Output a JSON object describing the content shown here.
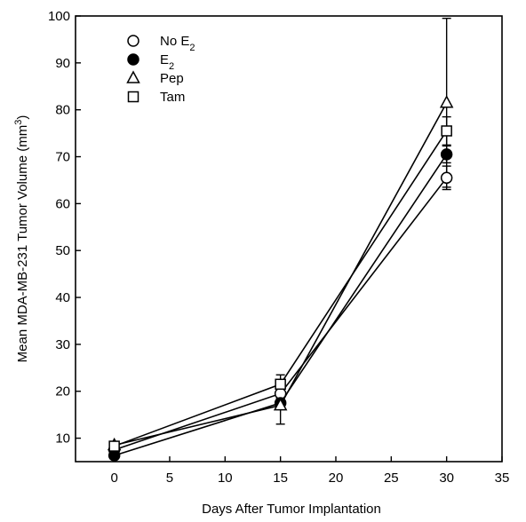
{
  "chart_data": {
    "type": "line",
    "xlabel": "Days After Tumor Implantation",
    "ylabel": "Mean MDA-MB-231 Tumor Volume (mm³)",
    "xlim": [
      -3.5,
      35
    ],
    "ylim": [
      5,
      100
    ],
    "xticks": [
      0,
      5,
      10,
      15,
      20,
      25,
      30,
      35
    ],
    "yticks": [
      10,
      20,
      30,
      40,
      50,
      60,
      70,
      80,
      90,
      100
    ],
    "x": [
      0,
      15,
      30
    ],
    "grid": false,
    "legend_position": "top-left",
    "series": [
      {
        "name": "No E₂",
        "marker": "circle-open",
        "values": [
          7.5,
          19.5,
          65.5
        ],
        "errors": [
          0.8,
          1.5,
          2.5
        ]
      },
      {
        "name": "E₂",
        "marker": "circle-filled",
        "values": [
          6.3,
          17.5,
          70.5
        ],
        "errors": [
          0.6,
          1.0,
          1.8
        ]
      },
      {
        "name": "Pep",
        "marker": "triangle-open",
        "values": [
          8.5,
          17.0,
          81.5
        ],
        "errors": [
          0.8,
          4.0,
          18.0
        ]
      },
      {
        "name": "Tam",
        "marker": "square-open",
        "values": [
          8.3,
          21.5,
          75.5
        ],
        "errors": [
          1.0,
          2.0,
          3.0
        ]
      }
    ]
  }
}
